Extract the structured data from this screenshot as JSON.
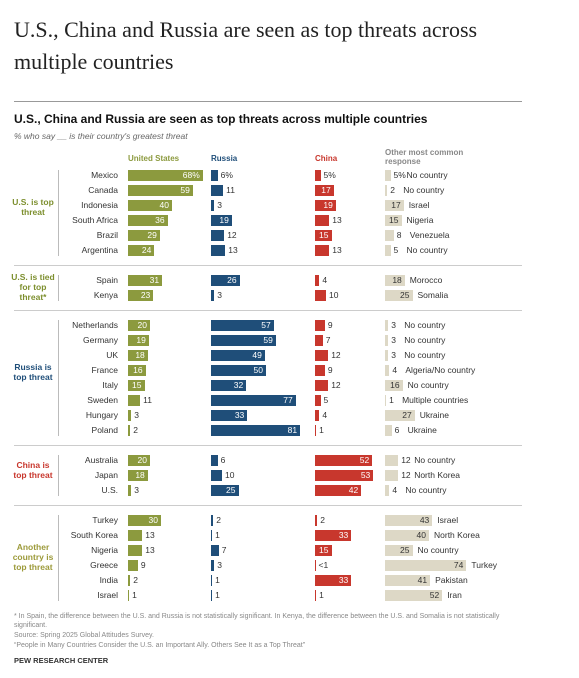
{
  "header": {
    "title": "U.S., China and Russia are seen as top threats across multiple countries"
  },
  "chart_data": {
    "type": "bar",
    "title": "U.S., China and Russia are seen as top threats across multiple countries",
    "subtitle": "% who say __ is their country's greatest threat",
    "columns": [
      {
        "name": "United States",
        "color": "#8c9a3e"
      },
      {
        "name": "Russia",
        "color": "#1f4e79"
      },
      {
        "name": "China",
        "color": "#c8372d"
      },
      {
        "name": "Other most common response",
        "color": "#ddd8c6"
      }
    ],
    "groups": [
      {
        "label": "U.S. is top threat",
        "color": "#7d8f2e",
        "rows": [
          {
            "country": "Mexico",
            "values": [
              68,
              6,
              5,
              5
            ],
            "value_labels": [
              "68%",
              "6%",
              "5%",
              "5%"
            ],
            "other": "No country"
          },
          {
            "country": "Canada",
            "values": [
              59,
              11,
              17,
              2
            ],
            "other": "No country"
          },
          {
            "country": "Indonesia",
            "values": [
              40,
              3,
              19,
              17
            ],
            "other": "Israel"
          },
          {
            "country": "South Africa",
            "values": [
              36,
              19,
              13,
              15
            ],
            "other": "Nigeria"
          },
          {
            "country": "Brazil",
            "values": [
              29,
              12,
              15,
              8
            ],
            "other": "Venezuela"
          },
          {
            "country": "Argentina",
            "values": [
              24,
              13,
              13,
              5
            ],
            "other": "No country"
          }
        ]
      },
      {
        "label": "U.S. is tied for top threat*",
        "color": "#7d8f2e",
        "rows": [
          {
            "country": "Spain",
            "values": [
              31,
              26,
              4,
              18
            ],
            "other": "Morocco"
          },
          {
            "country": "Kenya",
            "values": [
              23,
              3,
              10,
              25
            ],
            "other": "Somalia"
          }
        ]
      },
      {
        "label": "Russia is top threat",
        "color": "#1f4e79",
        "rows": [
          {
            "country": "Netherlands",
            "values": [
              20,
              57,
              9,
              3
            ],
            "other": "No country"
          },
          {
            "country": "Germany",
            "values": [
              19,
              59,
              7,
              3
            ],
            "other": "No country"
          },
          {
            "country": "UK",
            "values": [
              18,
              49,
              12,
              3
            ],
            "other": "No country"
          },
          {
            "country": "France",
            "values": [
              16,
              50,
              9,
              4
            ],
            "other": "Algeria/No country"
          },
          {
            "country": "Italy",
            "values": [
              15,
              32,
              12,
              16
            ],
            "other": "No country"
          },
          {
            "country": "Sweden",
            "values": [
              11,
              77,
              5,
              1
            ],
            "other": "Multiple countries"
          },
          {
            "country": "Hungary",
            "values": [
              3,
              33,
              4,
              27
            ],
            "other": "Ukraine"
          },
          {
            "country": "Poland",
            "values": [
              2,
              81,
              1,
              6
            ],
            "other": "Ukraine"
          }
        ]
      },
      {
        "label": "China is top threat",
        "color": "#c8372d",
        "rows": [
          {
            "country": "Australia",
            "values": [
              20,
              6,
              52,
              12
            ],
            "other": "No country"
          },
          {
            "country": "Japan",
            "values": [
              18,
              10,
              53,
              12
            ],
            "other": "North Korea"
          },
          {
            "country": "U.S.",
            "values": [
              3,
              25,
              42,
              4
            ],
            "other": "No country"
          }
        ]
      },
      {
        "label": "Another country is top threat",
        "color": "#9c9a3a",
        "rows": [
          {
            "country": "Turkey",
            "values": [
              30,
              2,
              2,
              43
            ],
            "other": "Israel"
          },
          {
            "country": "South Korea",
            "values": [
              13,
              1,
              33,
              40
            ],
            "other": "North Korea"
          },
          {
            "country": "Nigeria",
            "values": [
              13,
              7,
              15,
              25
            ],
            "other": "No country"
          },
          {
            "country": "Greece",
            "values": [
              9,
              3,
              0.5,
              74
            ],
            "value_labels": [
              "9",
              "3",
              "<1",
              "74"
            ],
            "other": "Turkey"
          },
          {
            "country": "India",
            "values": [
              2,
              1,
              33,
              41
            ],
            "other": "Pakistan"
          },
          {
            "country": "Israel",
            "values": [
              1,
              1,
              1,
              52
            ],
            "other": "Iran"
          }
        ]
      }
    ],
    "notes": [
      "* In Spain, the difference between the U.S. and Russia is not statistically significant. In Kenya, the difference between the U.S. and Somalia is not statistically significant.",
      "Source: Spring 2025 Global Attitudes Survey.",
      "“People in Many Countries Consider the U.S. an Important Ally. Others See It as a Top Threat”"
    ],
    "credit": "PEW RESEARCH CENTER"
  }
}
